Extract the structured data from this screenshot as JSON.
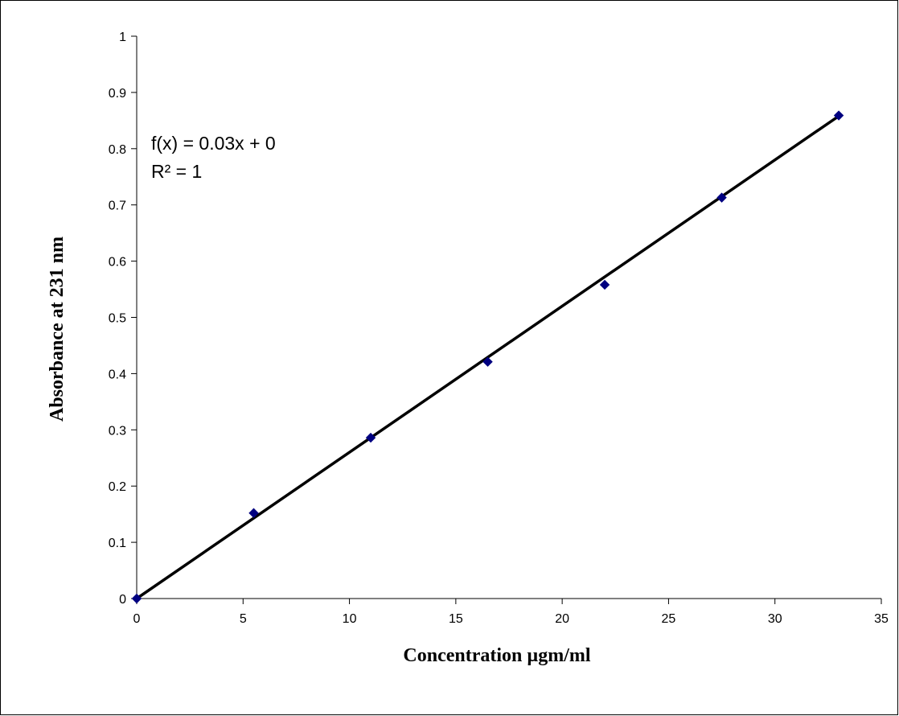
{
  "chart_data": {
    "type": "scatter",
    "title": "",
    "xlabel": "Concentration µgm/ml",
    "ylabel": "Absorbance at 231 nm",
    "xlim": [
      0,
      35
    ],
    "ylim": [
      0,
      1
    ],
    "x_ticks": [
      "0",
      "5",
      "10",
      "15",
      "20",
      "25",
      "30",
      "35"
    ],
    "y_ticks": [
      "0",
      "0.1",
      "0.2",
      "0.3",
      "0.4",
      "0.5",
      "0.6",
      "0.7",
      "0.8",
      "0.9",
      "1"
    ],
    "grid": false,
    "legend": "none",
    "series": [
      {
        "marker": "diamond",
        "color": "#000080",
        "x": [
          0,
          5.5,
          11,
          16.5,
          22,
          27.5,
          33
        ],
        "y": [
          0,
          0.152,
          0.286,
          0.421,
          0.558,
          0.713,
          0.859
        ]
      }
    ],
    "trendline": {
      "color": "#000000",
      "slope": 0.026,
      "intercept": 0,
      "x_range": [
        0,
        33
      ]
    },
    "annotations": {
      "equation": "f(x) = 0.03x + 0",
      "r_squared": "R² = 1"
    }
  }
}
